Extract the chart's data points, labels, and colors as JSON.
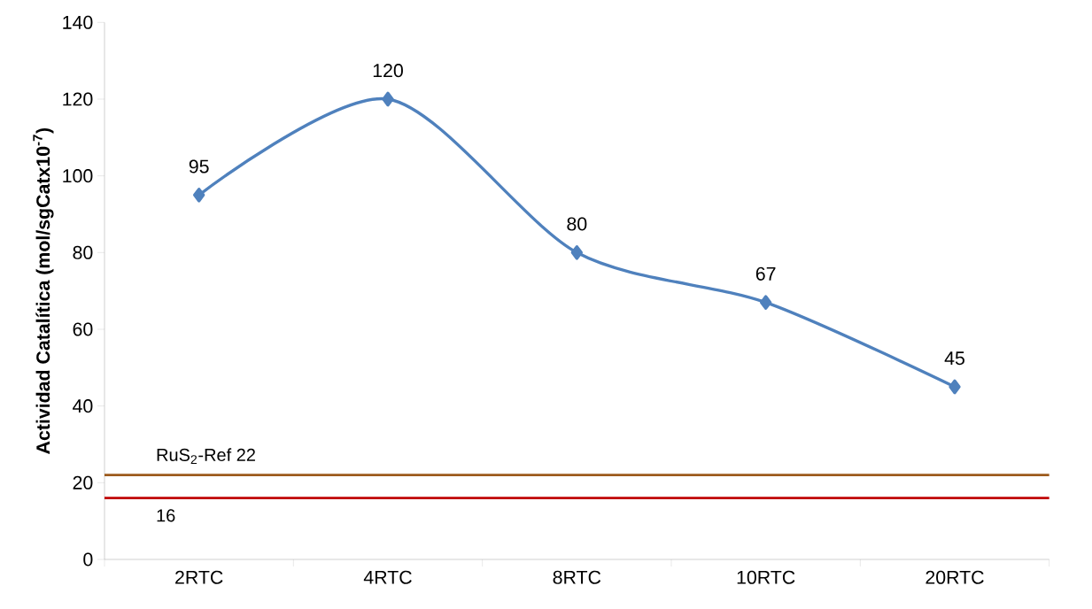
{
  "chart_data": {
    "type": "line",
    "ylabel": "Actividad Catalítica (mol/sgCatx10$^{-7}$)",
    "categories": [
      "2RTC",
      "4RTC",
      "8RTC",
      "10RTC",
      "20RTC"
    ],
    "series": [
      {
        "color": "#4f81bd",
        "values": [
          95,
          120,
          80,
          67,
          45
        ]
      }
    ],
    "ylim": [
      0,
      140
    ],
    "yticks": [
      0,
      20,
      40,
      60,
      80,
      100,
      120,
      140
    ],
    "data_labels": true,
    "marker": "diamond",
    "line_style": "solid",
    "grid": false,
    "ref_lines": [
      {
        "axis": "y",
        "value": 22,
        "label": "RuS$_{2}$-Ref      22",
        "color": "#9c5a1c"
      },
      {
        "axis": "y",
        "value": 16,
        "label": "16",
        "color": "#c00000"
      }
    ]
  }
}
